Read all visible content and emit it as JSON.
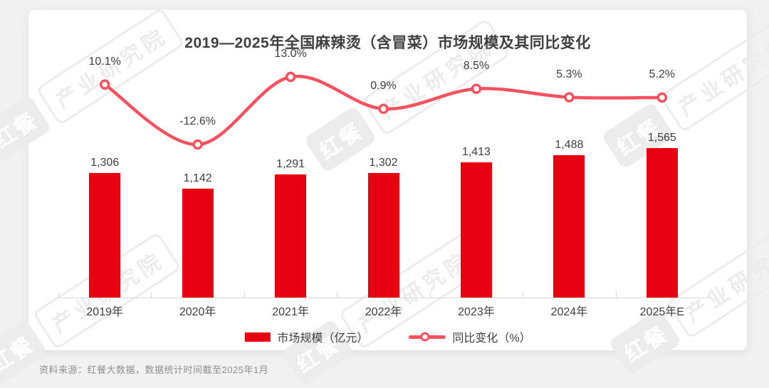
{
  "chart_data": {
    "type": "bar",
    "title": "2019—2025年全国麻辣烫（含冒菜）市场规模及其同比变化",
    "categories": [
      "2019年",
      "2020年",
      "2021年",
      "2022年",
      "2023年",
      "2024年",
      "2025年E"
    ],
    "series": [
      {
        "name": "市场规模（亿元）",
        "type": "bar",
        "color": "#e60012",
        "values": [
          1306,
          1142,
          1291,
          1302,
          1413,
          1488,
          1565
        ],
        "labels": [
          "1,306",
          "1,142",
          "1,291",
          "1,302",
          "1,413",
          "1,488",
          "1,565"
        ]
      },
      {
        "name": "同比变化（%）",
        "type": "line",
        "color": "#f6515e",
        "values": [
          10.1,
          -12.6,
          13.0,
          0.9,
          8.5,
          5.3,
          5.2
        ],
        "labels": [
          "10.1%",
          "-12.6%",
          "13.0%",
          "0.9%",
          "8.5%",
          "5.3%",
          "5.2%"
        ]
      }
    ],
    "bar_axis_range": [
      0,
      1800
    ],
    "line_axis_range": [
      -15,
      15
    ],
    "grid": false,
    "legend_position": "bottom",
    "data_labels": true
  },
  "source": "资料来源：红餐大数据，数据统计时间截至2025年1月",
  "watermark": {
    "brand": "红餐",
    "org": "产业研究院"
  },
  "colors": {
    "bar": "#e60012",
    "line": "#f6515e",
    "text_dark": "#3f3f3f",
    "axis": "#d9d9d9",
    "source_text": "#8f8f8f",
    "watermark": "#ececec",
    "page_bg": "#f1f1f2",
    "card_bg": "#ffffff"
  }
}
